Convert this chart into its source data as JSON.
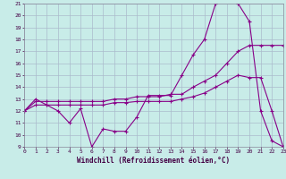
{
  "xlabel": "Windchill (Refroidissement éolien,°C)",
  "bg_color": "#c8ece8",
  "grid_color": "#aabbcc",
  "line_color": "#880088",
  "xmin": 0,
  "xmax": 23,
  "ymin": 9,
  "ymax": 21,
  "series1_x": [
    0,
    1,
    2,
    3,
    4,
    5,
    6,
    7,
    8,
    9,
    10,
    11,
    12,
    13,
    14,
    15,
    16,
    17,
    18,
    19,
    20,
    21,
    22,
    23
  ],
  "series1_y": [
    12,
    13,
    12.5,
    12,
    11,
    12.2,
    9,
    10.5,
    10.3,
    10.3,
    11.5,
    13.3,
    13.3,
    13.3,
    15,
    16.7,
    18,
    21,
    21.2,
    21,
    19.5,
    12,
    9.5,
    9
  ],
  "series2_x": [
    0,
    1,
    2,
    3,
    4,
    5,
    6,
    7,
    8,
    9,
    10,
    11,
    12,
    13,
    14,
    15,
    16,
    17,
    18,
    19,
    20,
    21,
    22,
    23
  ],
  "series2_y": [
    12,
    12.8,
    12.8,
    12.8,
    12.8,
    12.8,
    12.8,
    12.8,
    13,
    13,
    13.2,
    13.2,
    13.2,
    13.4,
    13.4,
    14,
    14.5,
    15,
    16,
    17,
    17.5,
    17.5,
    17.5,
    17.5
  ],
  "series3_x": [
    0,
    1,
    2,
    3,
    4,
    5,
    6,
    7,
    8,
    9,
    10,
    11,
    12,
    13,
    14,
    15,
    16,
    17,
    18,
    19,
    20,
    21,
    22,
    23
  ],
  "series3_y": [
    12,
    12.5,
    12.5,
    12.5,
    12.5,
    12.5,
    12.5,
    12.5,
    12.7,
    12.7,
    12.8,
    12.8,
    12.8,
    12.8,
    13,
    13.2,
    13.5,
    14,
    14.5,
    15,
    14.8,
    14.8,
    12,
    9
  ]
}
